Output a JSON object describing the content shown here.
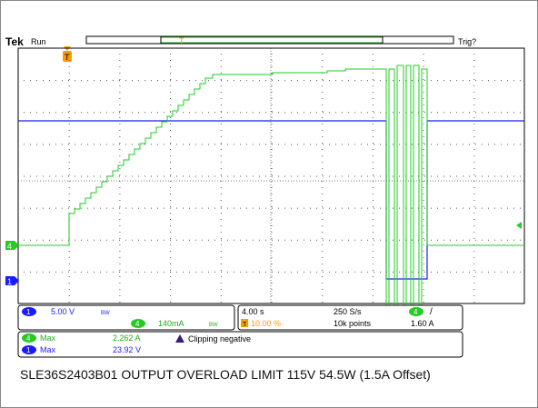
{
  "header": {
    "brand": "Tek",
    "run_state": "Run",
    "trigger_state": "Trig?",
    "trigger_marker": "T"
  },
  "channel_markers": {
    "ch4": "4",
    "ch1": "1"
  },
  "readout": {
    "ch1": {
      "num": "1",
      "scale": "5.00 V",
      "bw": "BW"
    },
    "ch4": {
      "num": "4",
      "scale": "140mA",
      "bw": "BW"
    },
    "timebase": "4.00 s",
    "sample_rate": "250 S/s",
    "trigger_pos": "10.00 %",
    "record_length": "10k points",
    "trigger_channel": "4",
    "trigger_slope": "/",
    "trigger_level": "1.60 A"
  },
  "measurements": [
    {
      "channel": "4",
      "label": "Max",
      "value": "2.262 A"
    },
    {
      "channel": "1",
      "label": "Max",
      "value": "23.92 V"
    }
  ],
  "warning": "Clipping negative",
  "caption": "SLE36S2403B01 OUTPUT OVERLOAD LIMIT 115V 54.5W (1.5A Offset)",
  "colors": {
    "ch1": "#1a1aff",
    "ch4": "#22cc22",
    "trigger": "#ff9900",
    "grid": "#000000"
  }
}
